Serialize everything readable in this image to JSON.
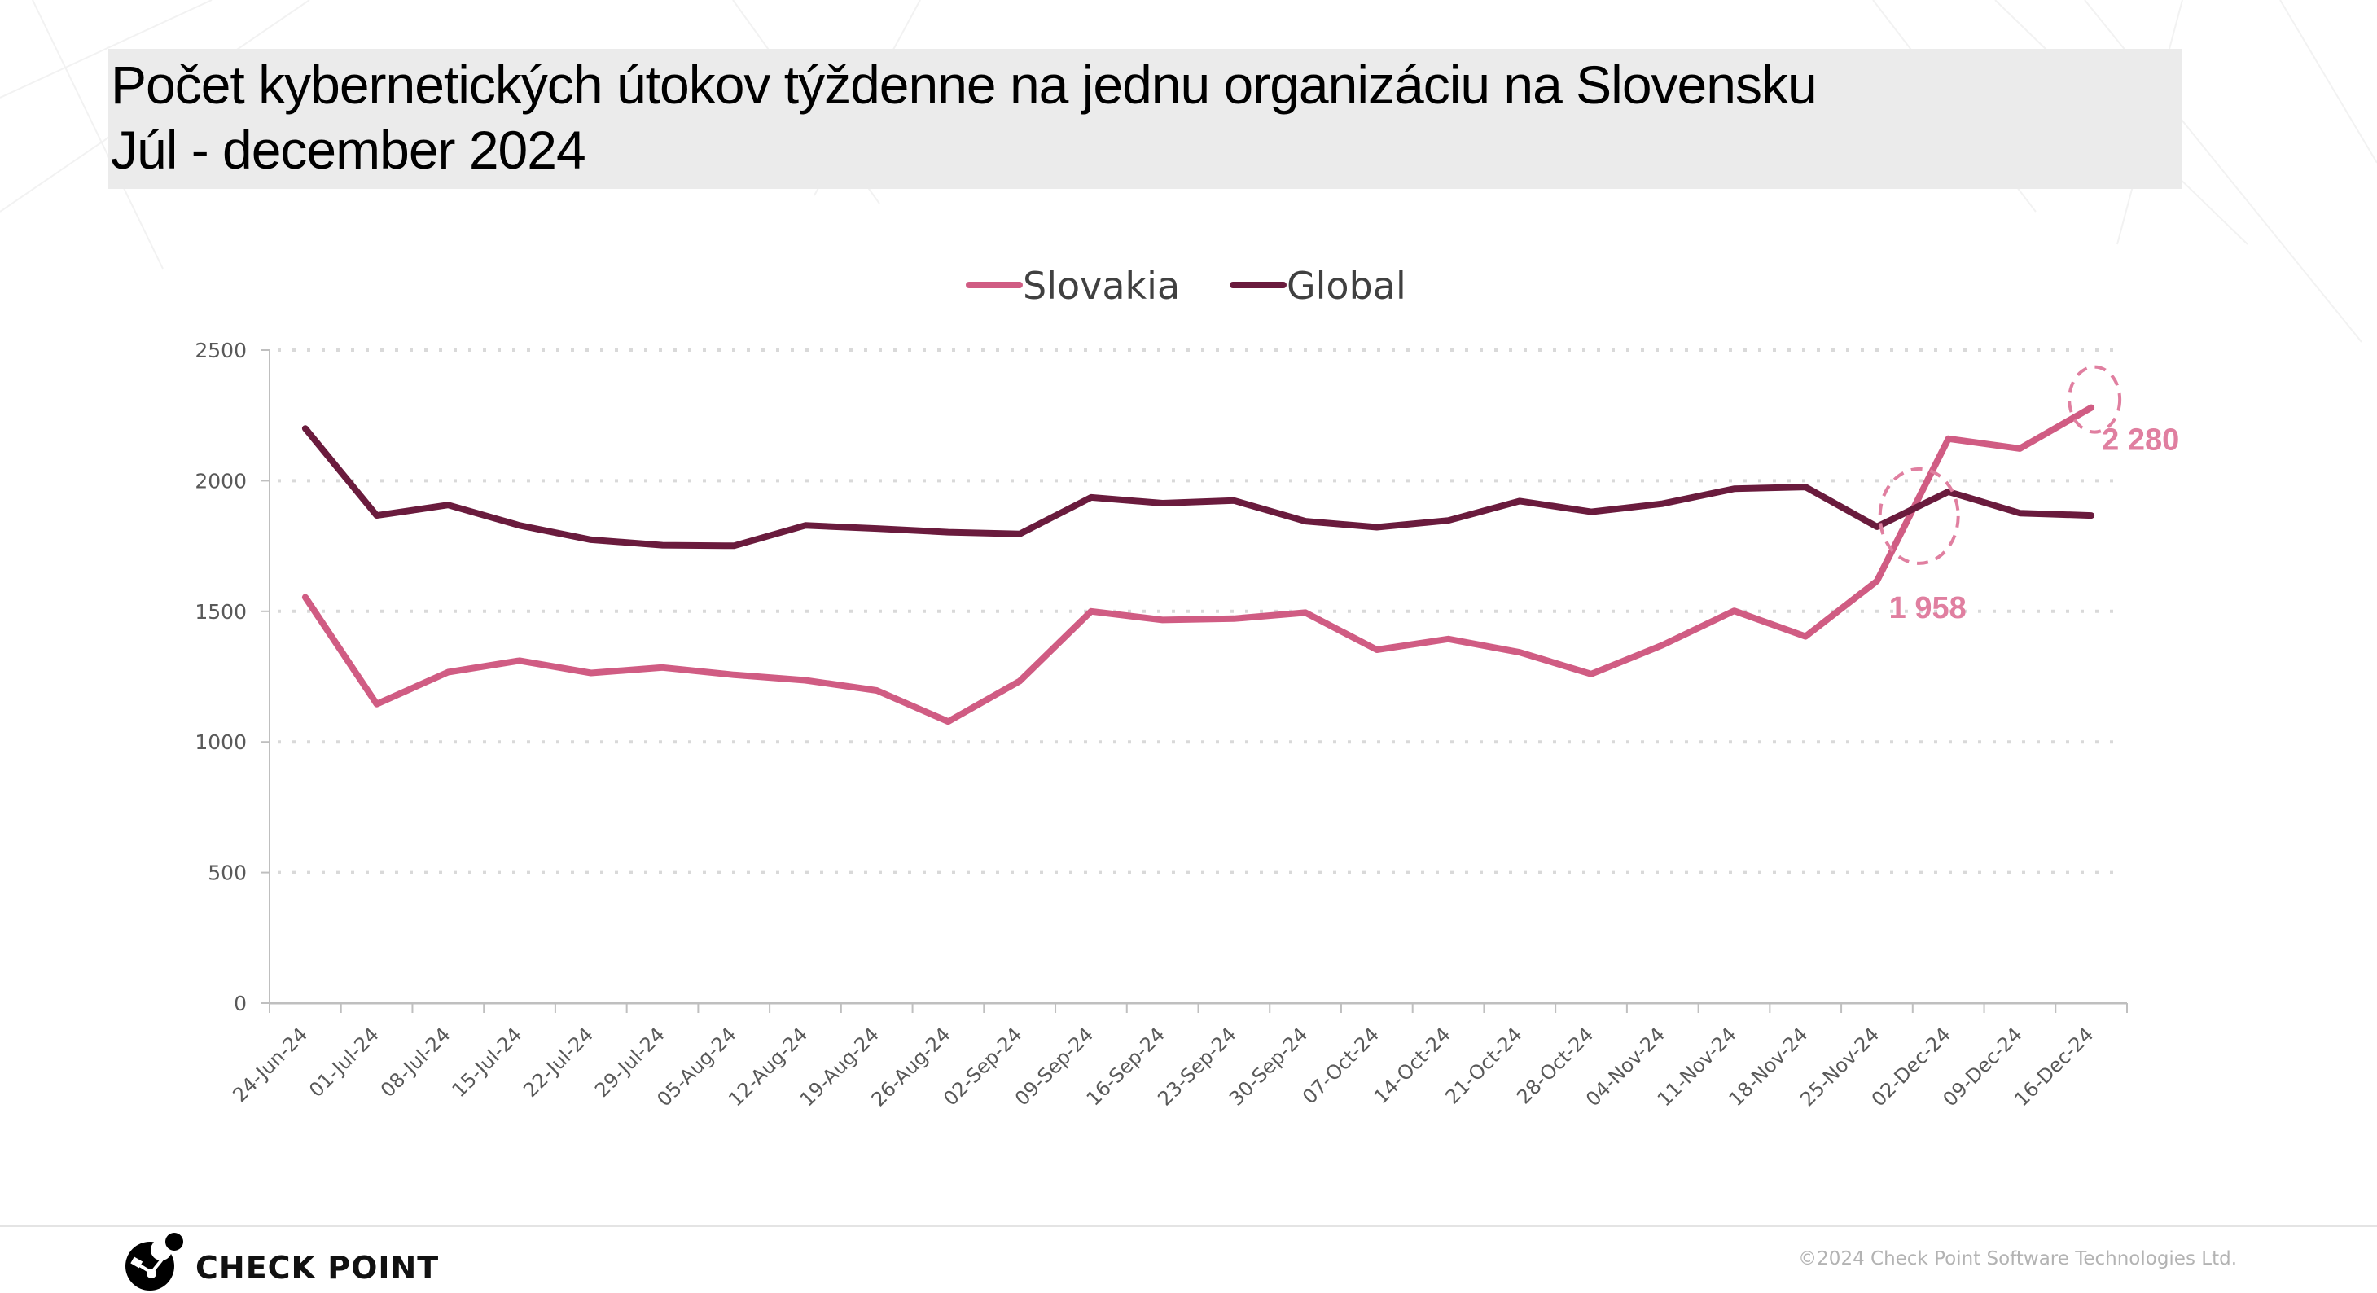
{
  "title": {
    "line1": "Počet kybernetických útokov týždenne na jednu organizáciu na Slovensku",
    "line2": "Júl - december 2024"
  },
  "chart_data": {
    "type": "line",
    "title": "Počet kybernetických útokov týždenne na jednu organizáciu na Slovensku Júl - december 2024",
    "xlabel": "",
    "ylabel": "",
    "ylim": [
      0,
      2500
    ],
    "yticks": [
      0,
      500,
      1000,
      1500,
      2000,
      2500
    ],
    "ytick_labels": [
      "0",
      "500",
      "1000",
      "1500",
      "2000",
      "2500"
    ],
    "grid": "horizontal-dotted",
    "legend_position": "top-center",
    "categories": [
      "24-Jun-24",
      "01-Jul-24",
      "08-Jul-24",
      "15-Jul-24",
      "22-Jul-24",
      "29-Jul-24",
      "05-Aug-24",
      "12-Aug-24",
      "19-Aug-24",
      "26-Aug-24",
      "02-Sep-24",
      "09-Sep-24",
      "16-Sep-24",
      "23-Sep-24",
      "30-Sep-24",
      "07-Oct-24",
      "14-Oct-24",
      "21-Oct-24",
      "28-Oct-24",
      "04-Nov-24",
      "11-Nov-24",
      "18-Nov-24",
      "25-Nov-24",
      "02-Dec-24",
      "09-Dec-24",
      "16-Dec-24"
    ],
    "series": [
      {
        "name": "Slovakia",
        "color": "#d05c83",
        "values": [
          1554,
          1145,
          1267,
          1311,
          1264,
          1285,
          1257,
          1236,
          1197,
          1078,
          1233,
          1500,
          1467,
          1472,
          1495,
          1353,
          1394,
          1343,
          1260,
          1371,
          1502,
          1404,
          1616,
          2161,
          2123,
          2280
        ]
      },
      {
        "name": "Global",
        "color": "#6a1b3d",
        "values": [
          2200,
          1867,
          1907,
          1829,
          1774,
          1753,
          1751,
          1829,
          1817,
          1803,
          1796,
          1936,
          1914,
          1924,
          1845,
          1822,
          1848,
          1922,
          1881,
          1912,
          1969,
          1976,
          1824,
          1958,
          1876,
          1867
        ]
      }
    ],
    "annotations": [
      {
        "text": "1 958",
        "series": "Global",
        "category": "02-Dec-24",
        "value": 1958,
        "color": "#e07fa0",
        "style": "dashed-circle"
      },
      {
        "text": "2 280",
        "series": "Slovakia",
        "category": "16-Dec-24",
        "value": 2280,
        "color": "#e07fa0",
        "style": "dashed-circle"
      }
    ]
  },
  "footer": {
    "logo_text": "CHECK POINT",
    "copyright": "©2024 Check Point Software Technologies Ltd."
  }
}
